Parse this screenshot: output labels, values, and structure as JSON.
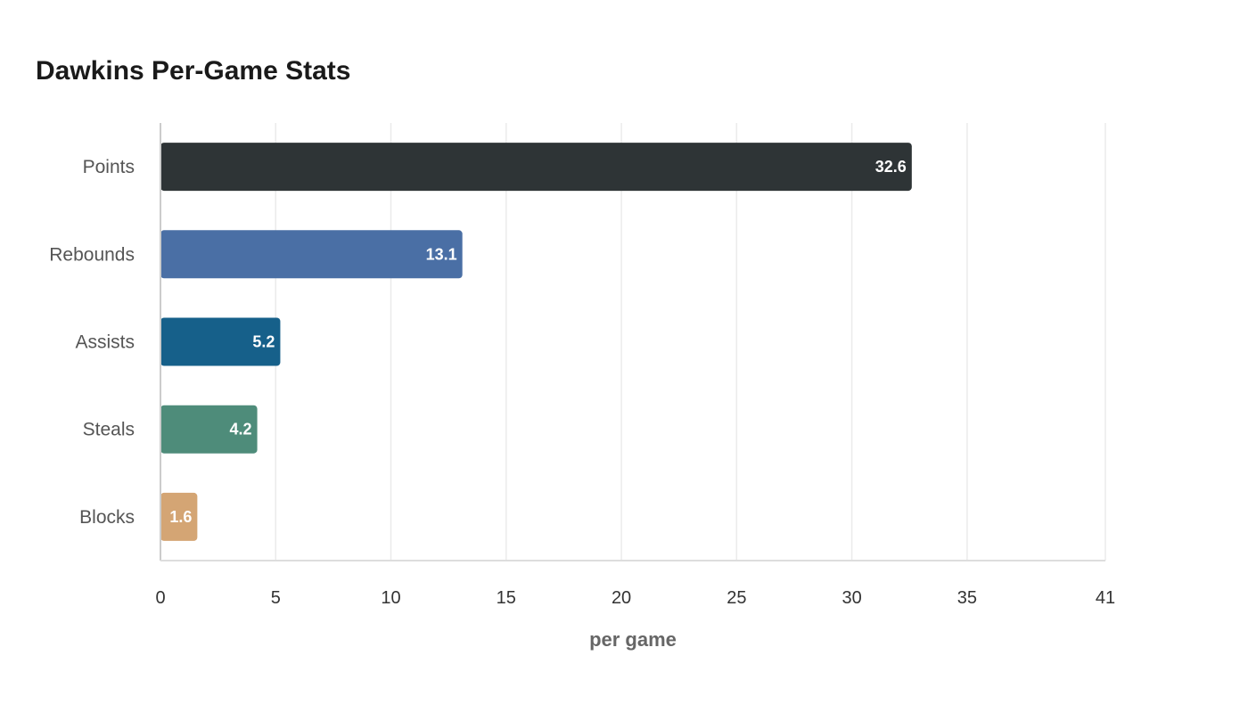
{
  "chart_data": {
    "type": "bar",
    "orientation": "horizontal",
    "title": "Dawkins Per-Game Stats",
    "xlabel": "per game",
    "ylabel": "",
    "categories": [
      "Points",
      "Rebounds",
      "Assists",
      "Steals",
      "Blocks"
    ],
    "values": [
      32.6,
      13.1,
      5.2,
      4.2,
      1.6
    ],
    "colors": [
      "#2e3436",
      "#4a6fa5",
      "#16608a",
      "#4e8c7a",
      "#d4a574"
    ],
    "xlim": [
      0,
      41
    ],
    "xticks": [
      0,
      5,
      10,
      15,
      20,
      25,
      30,
      35,
      41
    ],
    "grid": true,
    "legend": "none"
  }
}
